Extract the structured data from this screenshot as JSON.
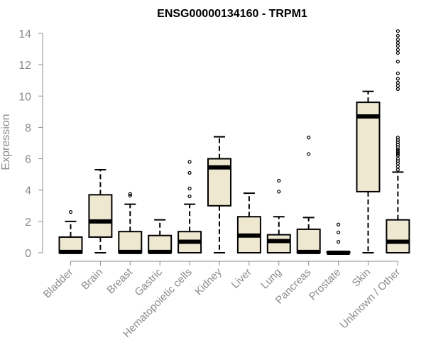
{
  "chart_data": {
    "type": "boxplot",
    "title": "ENSG00000134160 - TRPM1",
    "ylabel": "Expression",
    "xlabel": "",
    "ylim": [
      0,
      14.5
    ],
    "yticks": [
      0,
      2,
      4,
      6,
      8,
      10,
      12,
      14
    ],
    "box_fill": "#efe8d0",
    "categories": [
      "Bladder",
      "Brain",
      "Breast",
      "Gastric",
      "Hematopoietic cells",
      "Kidney",
      "Liver",
      "Lung",
      "Pancreas",
      "Prostate",
      "Skin",
      "Unknown / Other"
    ],
    "boxes": [
      {
        "q1": 0.0,
        "median": 0.05,
        "q3": 1.0,
        "whisker_low": 0.0,
        "whisker_high": 2.0,
        "outliers": [
          2.6
        ]
      },
      {
        "q1": 1.0,
        "median": 2.0,
        "q3": 3.7,
        "whisker_low": 0.0,
        "whisker_high": 5.3,
        "outliers": []
      },
      {
        "q1": 0.0,
        "median": 0.05,
        "q3": 1.35,
        "whisker_low": 0.0,
        "whisker_high": 3.1,
        "outliers": [
          3.65,
          3.75
        ]
      },
      {
        "q1": 0.0,
        "median": 0.05,
        "q3": 1.1,
        "whisker_low": 0.0,
        "whisker_high": 2.1,
        "outliers": []
      },
      {
        "q1": 0.0,
        "median": 0.7,
        "q3": 1.35,
        "whisker_low": 0.0,
        "whisker_high": 3.1,
        "outliers": [
          3.6,
          4.1,
          5.1,
          5.8
        ]
      },
      {
        "q1": 3.0,
        "median": 5.45,
        "q3": 6.0,
        "whisker_low": 0.0,
        "whisker_high": 7.4,
        "outliers": []
      },
      {
        "q1": 0.0,
        "median": 1.1,
        "q3": 2.3,
        "whisker_low": 0.0,
        "whisker_high": 3.8,
        "outliers": []
      },
      {
        "q1": 0.0,
        "median": 0.75,
        "q3": 1.15,
        "whisker_low": 0.0,
        "whisker_high": 2.3,
        "outliers": [
          3.9,
          4.6
        ]
      },
      {
        "q1": 0.0,
        "median": 0.05,
        "q3": 1.5,
        "whisker_low": 0.0,
        "whisker_high": 2.25,
        "outliers": [
          6.3,
          7.35
        ]
      },
      {
        "q1": 0.0,
        "median": 0.0,
        "q3": 0.05,
        "whisker_low": 0.0,
        "whisker_high": 0.05,
        "outliers": [
          0.7,
          1.3,
          1.8
        ]
      },
      {
        "q1": 3.9,
        "median": 8.7,
        "q3": 9.6,
        "whisker_low": 0.0,
        "whisker_high": 10.3,
        "outliers": []
      },
      {
        "q1": 0.0,
        "median": 0.7,
        "q3": 2.1,
        "whisker_low": 0.0,
        "whisker_high": 5.15,
        "outliers": [
          5.3,
          5.5,
          5.7,
          5.85,
          6.0,
          6.2,
          6.3,
          6.4,
          6.5,
          6.6,
          6.75,
          6.9,
          7.05,
          7.2,
          7.35,
          10.45,
          10.65,
          10.85,
          11.1,
          11.45,
          12.2,
          12.75,
          12.95,
          13.2,
          13.4,
          13.6,
          13.85,
          14.15
        ]
      }
    ]
  }
}
